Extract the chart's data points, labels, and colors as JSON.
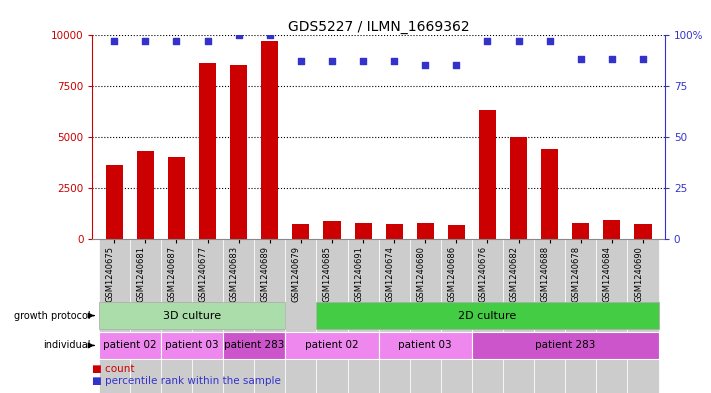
{
  "title": "GDS5227 / ILMN_1669362",
  "samples": [
    "GSM1240675",
    "GSM1240681",
    "GSM1240687",
    "GSM1240677",
    "GSM1240683",
    "GSM1240689",
    "GSM1240679",
    "GSM1240685",
    "GSM1240691",
    "GSM1240674",
    "GSM1240680",
    "GSM1240686",
    "GSM1240676",
    "GSM1240682",
    "GSM1240688",
    "GSM1240678",
    "GSM1240684",
    "GSM1240690"
  ],
  "counts": [
    3600,
    4300,
    4000,
    8600,
    8500,
    9700,
    750,
    900,
    800,
    750,
    800,
    700,
    6300,
    5000,
    4400,
    800,
    950,
    750
  ],
  "percentiles": [
    97,
    97,
    97,
    97,
    100,
    100,
    87,
    87,
    87,
    87,
    85,
    85,
    97,
    97,
    97,
    88,
    88,
    88
  ],
  "bar_color": "#cc0000",
  "dot_color": "#3333cc",
  "ylim_left": [
    0,
    10000
  ],
  "ylim_right": [
    0,
    100
  ],
  "yticks_left": [
    0,
    2500,
    5000,
    7500,
    10000
  ],
  "yticks_right": [
    0,
    25,
    50,
    75,
    100
  ],
  "growth_protocol_color_3d": "#aaddaa",
  "growth_protocol_color_2d": "#44cc44",
  "individual_color_light": "#ee88ee",
  "individual_color_dark": "#cc55cc",
  "background_color": "#ffffff",
  "xticklabel_bg": "#cccccc",
  "grid_color": "#555555",
  "axis_color_left": "#cc0000",
  "axis_color_right": "#3333cc",
  "indiv_groups": [
    {
      "label": "patient 02",
      "start": 0,
      "end": 1,
      "dark": false
    },
    {
      "label": "patient 03",
      "start": 2,
      "end": 3,
      "dark": false
    },
    {
      "label": "patient 283",
      "start": 4,
      "end": 5,
      "dark": true
    },
    {
      "label": "patient 02",
      "start": 6,
      "end": 8,
      "dark": false
    },
    {
      "label": "patient 03",
      "start": 9,
      "end": 11,
      "dark": false
    },
    {
      "label": "patient 283",
      "start": 12,
      "end": 17,
      "dark": true
    }
  ]
}
